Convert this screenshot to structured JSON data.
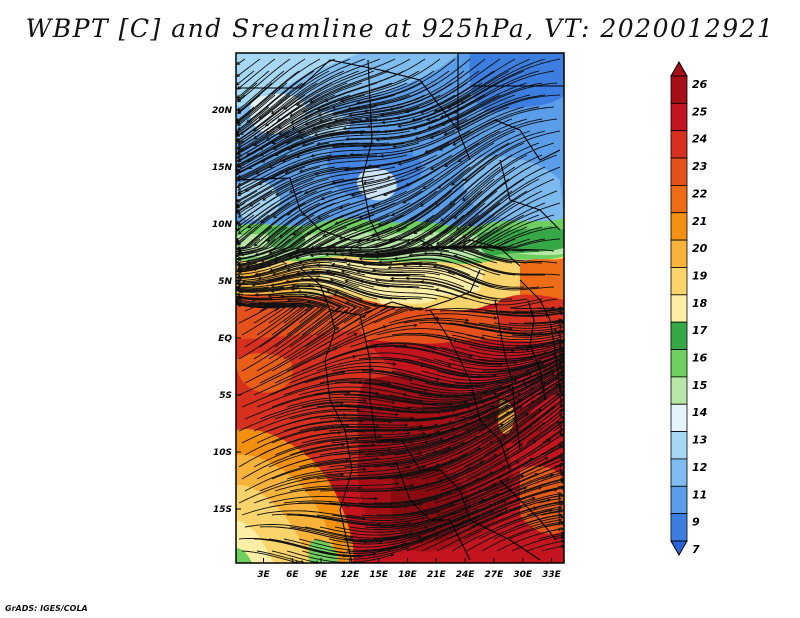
{
  "title": "WBPT [C] and Sreamline at 925hPa, VT: 2020012921",
  "footer": "GrADS: IGES/COLA",
  "map": {
    "variable": "Wet-bulb potential temperature",
    "units": "C",
    "level": "925hPa",
    "valid_time": "2020012921",
    "lat_labels": [
      "20N",
      "15N",
      "10N",
      "5N",
      "EQ",
      "5S",
      "10S",
      "15S"
    ],
    "lon_labels": [
      "3E",
      "6E",
      "9E",
      "12E",
      "15E",
      "18E",
      "21E",
      "24E",
      "27E",
      "30E",
      "33E"
    ]
  },
  "colorbar": {
    "labels": [
      "26",
      "25",
      "24",
      "23",
      "22",
      "21",
      "20",
      "19",
      "18",
      "17",
      "16",
      "15",
      "14",
      "13",
      "12",
      "11",
      "9",
      "7"
    ],
    "colors": [
      "#a50f15",
      "#c4141e",
      "#d7301f",
      "#e6501b",
      "#ef6c17",
      "#f4900f",
      "#f9b33b",
      "#fbd56b",
      "#fdeea5",
      "#36a846",
      "#6ccf5e",
      "#b8e8a6",
      "#e4f4fb",
      "#a6d8f5",
      "#7fbcef",
      "#5a9de8",
      "#3c7ee0",
      "#2a63d8"
    ]
  }
}
